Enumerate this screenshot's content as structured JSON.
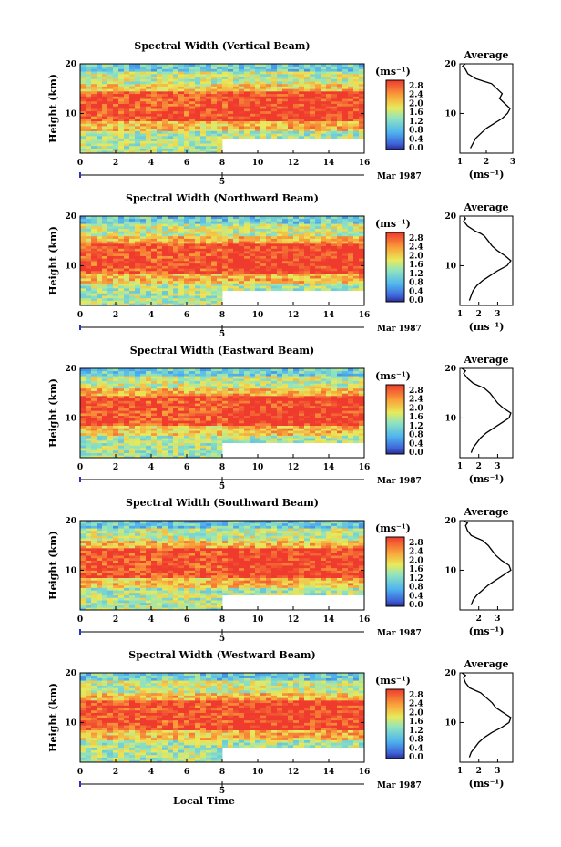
{
  "chart_data": [
    {
      "type": "heatmap",
      "title": "Spectral Width (Vertical Beam)",
      "ylabel": "Height (km)",
      "xlim": [
        0,
        16
      ],
      "ylim": [
        2,
        20
      ],
      "x_ticks": [
        0,
        2,
        4,
        6,
        8,
        10,
        12,
        14,
        16
      ],
      "y_ticks": [
        10,
        20
      ],
      "day_label": "5",
      "month_label": "Mar 1987",
      "colorbar": {
        "unit": "(ms⁻¹)",
        "ticks": [
          "2.8",
          "2.4",
          "2.0",
          "1.6",
          "1.2",
          "0.8",
          "0.4",
          "0.0"
        ]
      },
      "data_ends_at_lower_heights": {
        "time": 8,
        "height_below": 5
      },
      "average_profile": {
        "title": "Average",
        "xlabel": "(ms⁻¹)",
        "x_ticks": [
          1,
          2,
          3
        ],
        "xlim": [
          1,
          3
        ],
        "y_ticks": [
          10,
          20
        ],
        "x": [
          1.4,
          1.5,
          1.6,
          1.8,
          2.0,
          2.3,
          2.6,
          2.8,
          2.9,
          2.7,
          2.5,
          2.6,
          2.4,
          2.2,
          1.9,
          1.6,
          1.3,
          1.2,
          1.1,
          1.2
        ],
        "y": [
          3,
          4,
          5,
          6,
          7,
          8,
          9,
          10,
          11,
          12,
          13,
          14,
          15,
          16,
          16.5,
          17,
          18,
          19,
          19.5,
          20
        ]
      }
    },
    {
      "type": "heatmap",
      "title": "Spectral Width (Northward Beam)",
      "ylabel": "Height (km)",
      "xlim": [
        0,
        16
      ],
      "ylim": [
        2,
        20
      ],
      "x_ticks": [
        0,
        2,
        4,
        6,
        8,
        10,
        12,
        14,
        16
      ],
      "y_ticks": [
        10,
        20
      ],
      "day_label": "5",
      "month_label": "Mar 1987",
      "colorbar": {
        "unit": "(ms⁻¹)",
        "ticks": [
          "2.8",
          "2.4",
          "2.0",
          "1.6",
          "1.2",
          "0.8",
          "0.4",
          "0.0"
        ]
      },
      "data_ends_at_lower_heights": {
        "time": 8,
        "height_below": 5
      },
      "average_profile": {
        "title": "Average",
        "xlabel": "(ms⁻¹)",
        "x_ticks": [
          1,
          2,
          3
        ],
        "xlim": [
          1,
          3.8
        ],
        "y_ticks": [
          10,
          20
        ],
        "x": [
          1.5,
          1.6,
          1.7,
          1.9,
          2.2,
          2.6,
          3.0,
          3.5,
          3.7,
          3.4,
          3.0,
          2.7,
          2.5,
          2.3,
          2.1,
          1.8,
          1.4,
          1.2,
          1.3,
          1.2
        ],
        "y": [
          3,
          4,
          5,
          6,
          7,
          8,
          9,
          10,
          11,
          12,
          13,
          14,
          15,
          16,
          16.5,
          17,
          18,
          19,
          19.5,
          20
        ]
      }
    },
    {
      "type": "heatmap",
      "title": "Spectral Width (Eastward Beam)",
      "ylabel": "Height (km)",
      "xlim": [
        0,
        16
      ],
      "ylim": [
        2,
        20
      ],
      "x_ticks": [
        0,
        2,
        4,
        6,
        8,
        10,
        12,
        14,
        16
      ],
      "y_ticks": [
        10,
        20
      ],
      "day_label": "5",
      "month_label": "Mar 1987",
      "colorbar": {
        "unit": "(ms⁻¹)",
        "ticks": [
          "2.8",
          "2.4",
          "2.0",
          "1.6",
          "1.2",
          "0.8",
          "0.4",
          "0.0"
        ]
      },
      "data_ends_at_lower_heights": {
        "time": 8,
        "height_below": 5
      },
      "average_profile": {
        "title": "Average",
        "xlabel": "(ms⁻¹)",
        "x_ticks": [
          1,
          2,
          3
        ],
        "xlim": [
          1,
          3.8
        ],
        "y_ticks": [
          10,
          20
        ],
        "x": [
          1.6,
          1.7,
          1.9,
          2.1,
          2.4,
          2.8,
          3.2,
          3.6,
          3.7,
          3.3,
          3.0,
          2.8,
          2.6,
          2.3,
          2.0,
          1.7,
          1.4,
          1.2,
          1.3,
          1.1
        ],
        "y": [
          3,
          4,
          5,
          6,
          7,
          8,
          9,
          10,
          11,
          12,
          13,
          14,
          15,
          16,
          16.5,
          17,
          18,
          19,
          19.5,
          20
        ]
      }
    },
    {
      "type": "heatmap",
      "title": "Spectral Width (Southward Beam)",
      "ylabel": "Height (km)",
      "xlim": [
        0,
        16
      ],
      "ylim": [
        2,
        20
      ],
      "x_ticks": [
        0,
        2,
        4,
        6,
        8,
        10,
        12,
        14,
        16
      ],
      "y_ticks": [
        10,
        20
      ],
      "day_label": "5",
      "month_label": "Mar 1987",
      "colorbar": {
        "unit": "(ms⁻¹)",
        "ticks": [
          "2.8",
          "2.4",
          "2.0",
          "1.6",
          "1.2",
          "0.8",
          "0.4",
          "0.0"
        ]
      },
      "data_ends_at_lower_heights": {
        "time": 8,
        "height_below": 5
      },
      "average_profile": {
        "title": "Average",
        "xlabel": "(ms⁻¹)",
        "x_ticks": [
          2,
          3
        ],
        "xlim": [
          1,
          3.8
        ],
        "y_ticks": [
          10,
          20
        ],
        "x": [
          1.6,
          1.7,
          1.9,
          2.2,
          2.5,
          2.9,
          3.3,
          3.7,
          3.6,
          3.2,
          2.9,
          2.7,
          2.5,
          2.2,
          1.9,
          1.6,
          1.4,
          1.3,
          1.4,
          1.2
        ],
        "y": [
          3,
          4,
          5,
          6,
          7,
          8,
          9,
          10,
          11,
          12,
          13,
          14,
          15,
          16,
          16.5,
          17,
          18,
          19,
          19.5,
          20
        ]
      }
    },
    {
      "type": "heatmap",
      "title": "Spectral Width (Westward Beam)",
      "ylabel": "Height (km)",
      "xlabel": "Local Time",
      "xlim": [
        0,
        16
      ],
      "ylim": [
        2,
        20
      ],
      "x_ticks": [
        0,
        2,
        4,
        6,
        8,
        10,
        12,
        14,
        16
      ],
      "y_ticks": [
        10,
        20
      ],
      "day_label": "5",
      "month_label": "Mar 1987",
      "colorbar": {
        "unit": "(ms⁻¹)",
        "ticks": [
          "2.8",
          "2.4",
          "2.0",
          "1.6",
          "1.2",
          "0.8",
          "0.4",
          "0.0"
        ]
      },
      "data_ends_at_lower_heights": {
        "time": 8,
        "height_below": 5
      },
      "average_profile": {
        "title": "Average",
        "xlabel": "(ms⁻¹)",
        "x_ticks": [
          1,
          2,
          3
        ],
        "xlim": [
          1,
          3.8
        ],
        "y_ticks": [
          10,
          20
        ],
        "x": [
          1.5,
          1.6,
          1.8,
          2.0,
          2.3,
          2.7,
          3.2,
          3.6,
          3.7,
          3.3,
          2.9,
          2.7,
          2.4,
          2.1,
          1.8,
          1.5,
          1.3,
          1.2,
          1.3,
          1.1
        ],
        "y": [
          3,
          4,
          5,
          6,
          7,
          8,
          9,
          10,
          11,
          12,
          13,
          14,
          15,
          16,
          16.5,
          17,
          18,
          19,
          19.5,
          20
        ]
      }
    }
  ]
}
